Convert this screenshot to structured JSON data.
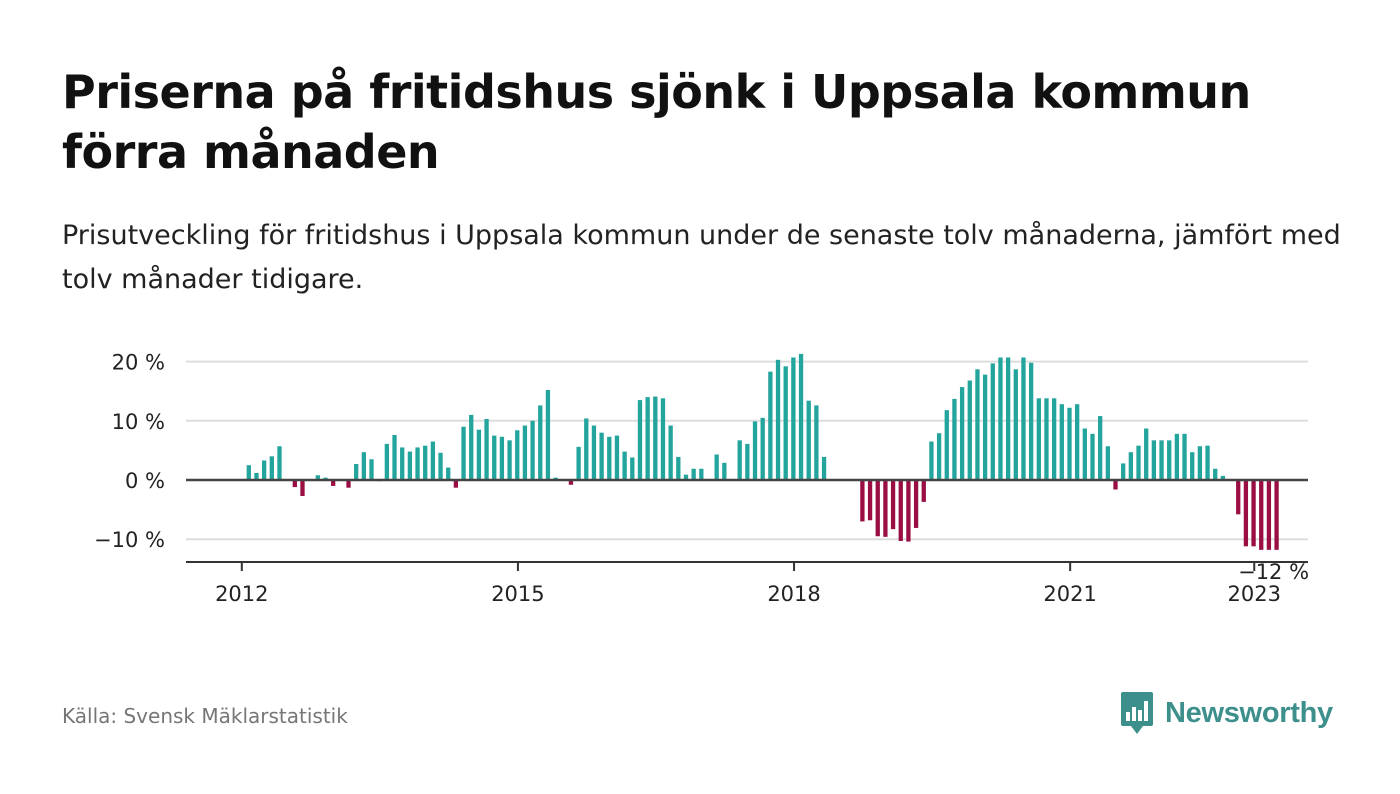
{
  "title": "Priserna på fritidshus sjönk i Uppsala kommun förra månaden",
  "subtitle": "Prisutveckling för fritidshus i Uppsala kommun under de senaste tolv månaderna, jämfört med tolv månader tidigare.",
  "source": "Källa: Svensk Mäklarstatistik",
  "logo": {
    "text": "Newsworthy",
    "icon": "bar-chart-speech-bubble-icon"
  },
  "colors": {
    "positive": "#23a49c",
    "negative": "#9a0e44",
    "grid": "#dddddd",
    "zero_line": "#444444",
    "logo": "#3d8f8c"
  },
  "chart_data": {
    "type": "bar",
    "x_start": "2012-01",
    "frequency": "monthly",
    "y_ticks": [
      "20 %",
      "10 %",
      "0 %",
      "−10 %"
    ],
    "y_tick_values": [
      20,
      10,
      0,
      -10
    ],
    "x_ticks": [
      "2012",
      "2015",
      "2018",
      "2021",
      "2023"
    ],
    "x_tick_indices": [
      0,
      36,
      72,
      108,
      132
    ],
    "ylim": [
      -14,
      22
    ],
    "end_label": "−12 %",
    "values": [
      2.5,
      1.2,
      3.3,
      4,
      5.7,
      0,
      -1.2,
      -2.7,
      0,
      0.8,
      0.4,
      -1,
      0,
      -1.3,
      2.7,
      4.7,
      3.5,
      -0.2,
      6.1,
      7.6,
      5.5,
      4.8,
      5.5,
      5.8,
      6.5,
      4.6,
      2.1,
      -1.3,
      9,
      11,
      8.5,
      10.3,
      7.5,
      7.3,
      6.7,
      8.4,
      9.2,
      10,
      12.6,
      15.2,
      0.4,
      0,
      -0.8,
      5.6,
      10.4,
      9.2,
      8,
      7.3,
      7.5,
      4.8,
      3.8,
      13.5,
      14,
      14.1,
      13.8,
      9.2,
      3.9,
      0.9,
      1.9,
      1.9,
      0,
      4.3,
      2.9,
      0,
      6.7,
      6.1,
      9.9,
      10.5,
      18.3,
      20.3,
      19.2,
      20.7,
      21.3,
      13.4,
      12.6,
      3.9,
      0,
      0,
      0,
      0,
      -7,
      -6.8,
      -9.5,
      -9.6,
      -8.3,
      -10.3,
      -10.4,
      -8.1,
      -3.7,
      6.5,
      7.9,
      11.8,
      13.7,
      15.7,
      16.8,
      18.7,
      17.8,
      19.7,
      20.7,
      20.7,
      18.7,
      20.7,
      19.8,
      13.8,
      13.8,
      13.8,
      12.8,
      12.2,
      12.8,
      8.7,
      7.8,
      10.8,
      5.7,
      -1.6,
      2.8,
      4.7,
      5.8,
      8.7,
      6.7,
      6.7,
      6.7,
      7.8,
      7.8,
      4.7,
      5.7,
      5.8,
      1.9,
      0.7,
      0,
      -5.8,
      -11.2,
      -11.2,
      -11.8,
      -11.8,
      -11.8
    ]
  }
}
